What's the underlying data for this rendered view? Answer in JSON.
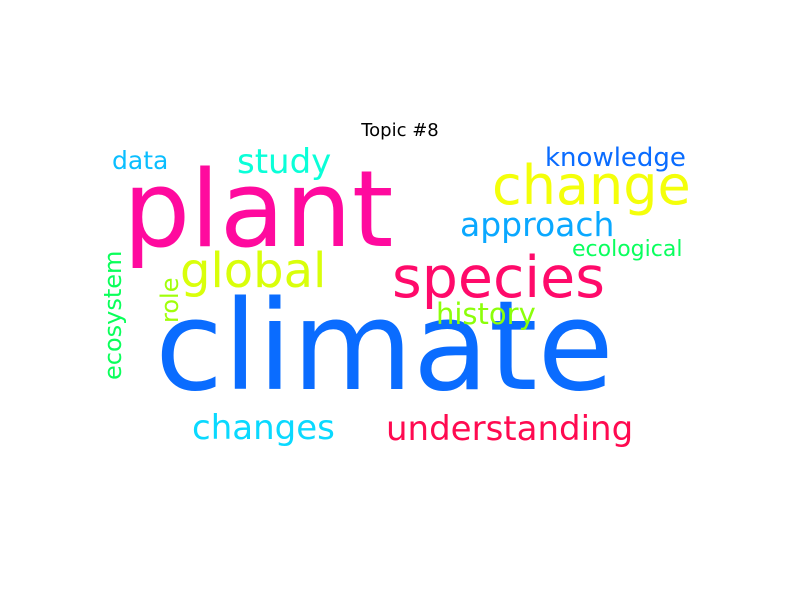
{
  "title": "Topic #8",
  "words": {
    "climate": {
      "text": "climate",
      "color": "#0A6CFF"
    },
    "plant": {
      "text": "plant",
      "color": "#FF0A9E"
    },
    "species": {
      "text": "species",
      "color": "#FF0A6A"
    },
    "change": {
      "text": "change",
      "color": "#F4FF0A"
    },
    "global": {
      "text": "global",
      "color": "#D9FF0A"
    },
    "understanding": {
      "text": "understanding",
      "color": "#FF0A50"
    },
    "changes": {
      "text": "changes",
      "color": "#0AD9FF"
    },
    "approach": {
      "text": "approach",
      "color": "#0AA8FF"
    },
    "study": {
      "text": "study",
      "color": "#0AFFD8"
    },
    "history": {
      "text": "history",
      "color": "#8CFF0A"
    },
    "knowledge": {
      "text": "knowledge",
      "color": "#0A6CFF"
    },
    "data": {
      "text": "data",
      "color": "#0ABEFF"
    },
    "ecological": {
      "text": "ecological",
      "color": "#0AFF5E"
    },
    "ecosystem": {
      "text": "ecosystem",
      "color": "#0AFF5A"
    },
    "role": {
      "text": "role",
      "color": "#A0FF0A"
    }
  }
}
